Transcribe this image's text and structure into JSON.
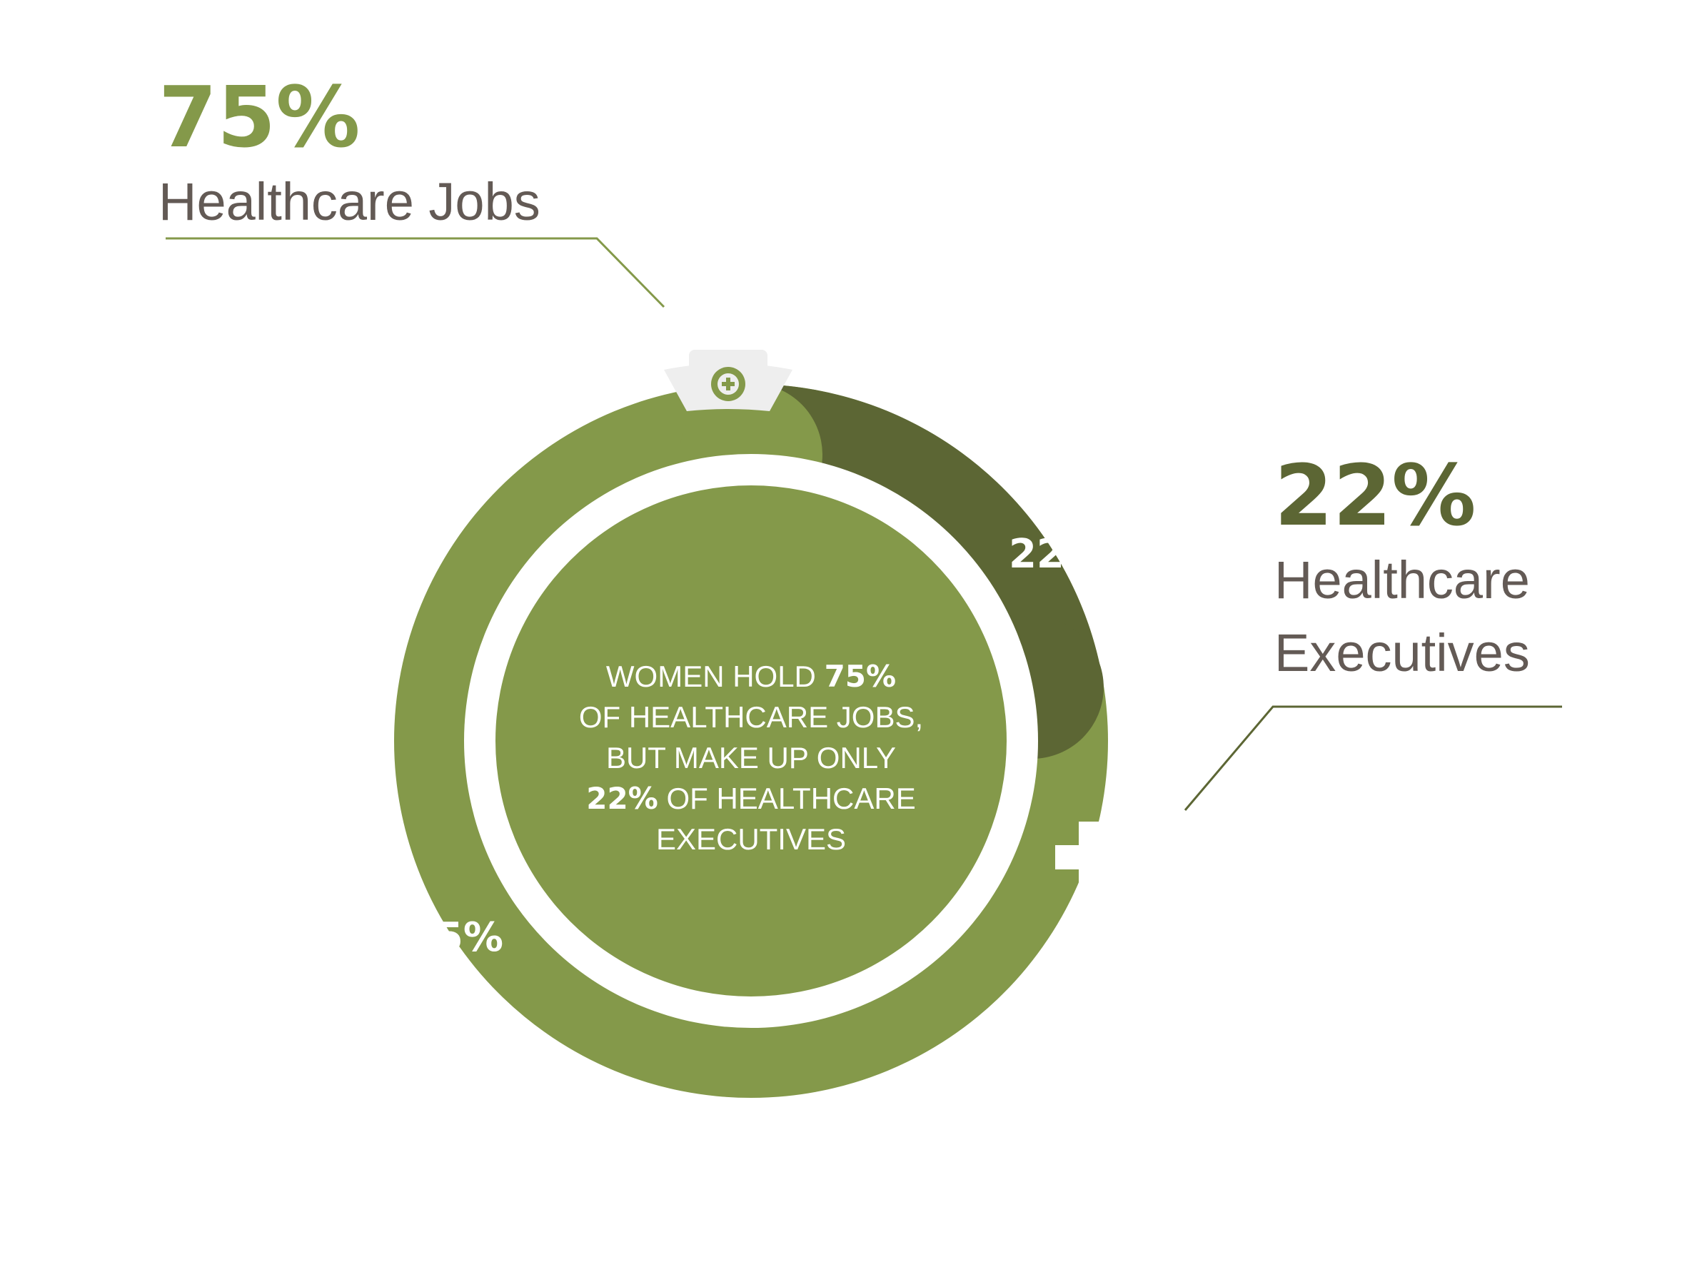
{
  "colors": {
    "light_green": "#84994a",
    "dark_green": "#5c6634",
    "text_gray": "#635a55",
    "icon_fill": "#eeeeee",
    "background": "#ffffff"
  },
  "callouts": {
    "jobs": {
      "value_text": "75%",
      "label": "Healthcare Jobs"
    },
    "executives": {
      "value_text": "22%",
      "label_line1": "Healthcare",
      "label_line2": "Executives"
    }
  },
  "center": {
    "line1_a": "WOMEN HOLD ",
    "line1_b": "75%",
    "line2": "OF HEALTHCARE JOBS,",
    "line3": "BUT MAKE UP ONLY",
    "line4_a": "22%",
    "line4_b": " OF HEALTHCARE",
    "line5": "EXECUTIVES"
  },
  "icons": {
    "jobs_icon": "nurse-cap-icon",
    "executives_icon": "medical-cross-icon"
  },
  "chart_data": {
    "type": "pie",
    "variant": "donut",
    "categories": [
      "Healthcare Jobs",
      "Healthcare Executives"
    ],
    "values": [
      75,
      22
    ],
    "value_labels": [
      "75%",
      "22%"
    ],
    "colors": [
      "#84994a",
      "#5c6634"
    ],
    "title": "",
    "legend": "callouts"
  }
}
